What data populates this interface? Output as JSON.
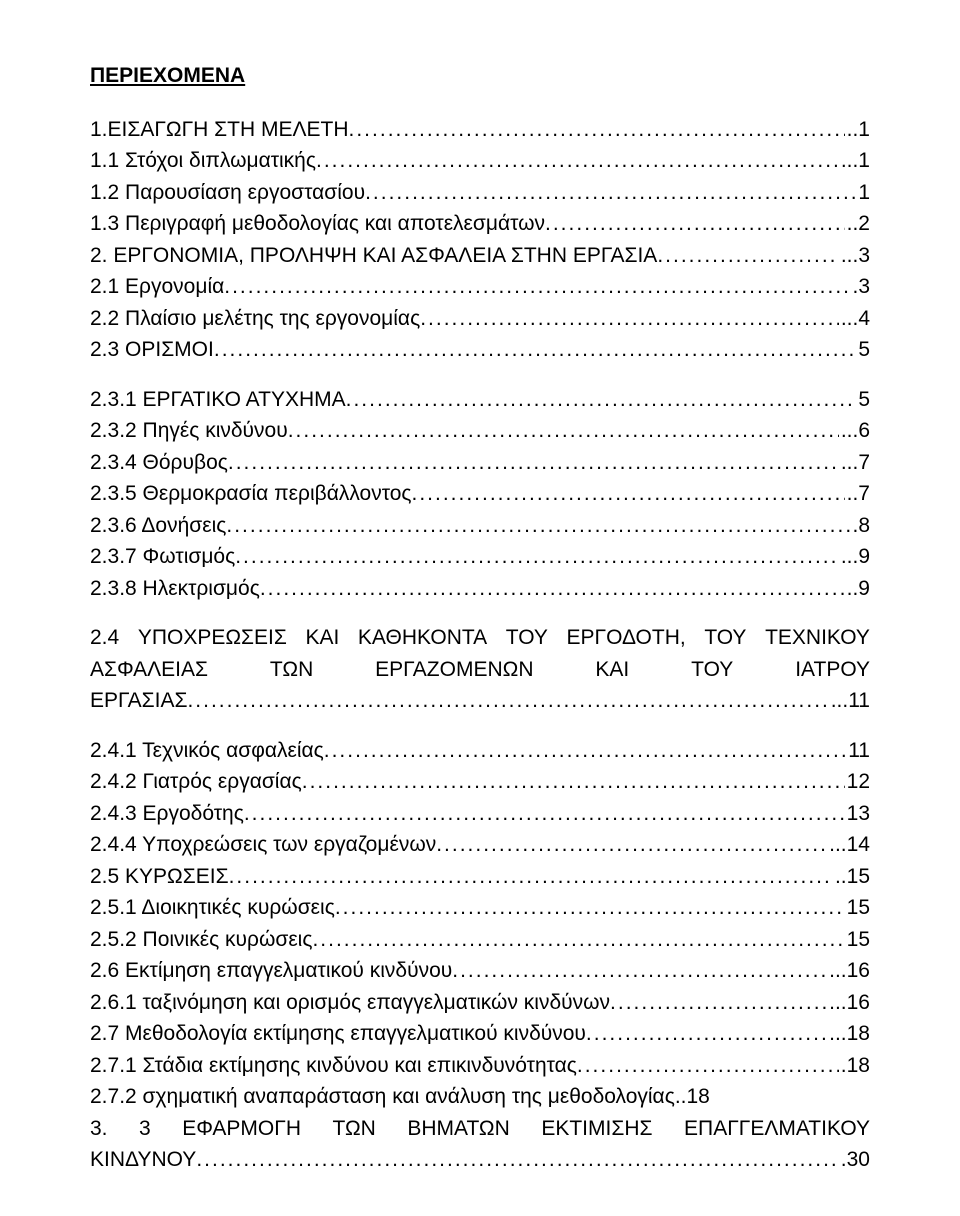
{
  "title": "ΠΕΡΙΕΧΟΜΕΝΑ",
  "font": {
    "family": "Arial",
    "size": 21,
    "title_weight": 700,
    "body_weight": 400,
    "color": "#000000"
  },
  "background_color": "#ffffff",
  "toc": [
    {
      "label": "1.ΕΙΣΑΓΩΓΗ ΣΤΗ ΜΕΛΕΤΗ",
      "page": "..1"
    },
    {
      "label": "1.1 Στόχοι διπλωματικής",
      "page": "..1"
    },
    {
      "label": "1.2 Παρουσίαση εργοστασίου",
      "page": "1"
    },
    {
      "label": "1.3 Περιγραφή μεθοδολογίας και αποτελεσμάτων",
      "page": "..2"
    },
    {
      "label": "2. ΕΡΓΟΝΟΜΙΑ, ΠΡΟΛΗΨΗ ΚΑΙ ΑΣΦΑΛΕΙΑ ΣΤΗΝ ΕΡΓΑΣΙΑ",
      "page": "...3"
    },
    {
      "label": "2.1 Εργονομία",
      "page": ".3"
    },
    {
      "label": "2.2 Πλαίσιο μελέτης της εργονομίας",
      "page": "...4"
    },
    {
      "label": "2.3 ΟΡΙΣΜΟΙ",
      "page": "5"
    },
    {
      "gap": true
    },
    {
      "label": "2.3.1 ΕΡΓΑΤΙΚΟ ΑΤΥΧΗΜΑ",
      "page": "5"
    },
    {
      "label": "2.3.2 Πηγές κινδύνου",
      "page": "...6"
    },
    {
      "label": "2.3.4 Θόρυβος",
      "page": "...7"
    },
    {
      "label": "2.3.5 Θερμοκρασία περιβάλλοντος",
      "page": "..7"
    },
    {
      "label": "2.3.6 Δονήσεις",
      "page": ".8"
    },
    {
      "label": "2.3.7 Φωτισμός",
      "page": "...9"
    },
    {
      "label": "2.3.8 Ηλεκτρισμός",
      "page": "..9"
    },
    {
      "gap": true
    },
    {
      "justify": true,
      "words": [
        "2.4",
        "ΥΠΟΧΡΕΩΣΕΙΣ",
        "ΚΑΙ",
        "ΚΑΘΗΚΟΝΤΑ",
        "ΤΟΥ",
        "ΕΡΓΟΔΟΤΗ,",
        "ΤΟΥ",
        "ΤΕΧΝΙΚΟΥ"
      ]
    },
    {
      "justify": true,
      "words": [
        "ΑΣΦΑΛΕΙΑΣ",
        "ΤΩΝ",
        "ΕΡΓΑΖΟΜΕΝΩΝ",
        "ΚΑΙ",
        "ΤΟΥ",
        "ΙΑΤΡΟΥ"
      ]
    },
    {
      "label": "ΕΡΓΑΣΙΑΣ",
      "page": "...11"
    },
    {
      "gap": true
    },
    {
      "label": "2.4.1 Τεχνικός ασφαλείας",
      "page": "11"
    },
    {
      "label": "2.4.2 Γιατρός εργασίας",
      "page": "12"
    },
    {
      "label": "2.4.3 Εργοδότης",
      "page": "13"
    },
    {
      "label": "2.4.4 Υποχρεώσεις των εργαζομένων",
      "page": "...14"
    },
    {
      "label": "2.5 ΚΥΡΩΣΕΙΣ",
      "page": "..15"
    },
    {
      "label": "2.5.1 Διοικητικές κυρώσεις",
      "page": "15"
    },
    {
      "label": "2.5.2 Ποινικές κυρώσεις",
      "page": "15"
    },
    {
      "label": "2.6 Εκτίμηση επαγγελματικού κινδύνου",
      "page": "...16"
    },
    {
      "label": "2.6.1 ταξινόμηση και ορισμός επαγγελματικών κινδύνων",
      "page": "...16"
    },
    {
      "label": "2.7 Μεθοδολογία εκτίμησης επαγγελματικού κινδύνου",
      "page": "...18"
    },
    {
      "label": "2.7.1 Στάδια εκτίμησης κινδύνου και επικινδυνότητας",
      "page": ".18"
    },
    {
      "plain": "2.7.2 σχηματική αναπαράσταση και ανάλυση της μεθοδολογίας..18"
    },
    {
      "justify": true,
      "words": [
        "3.",
        "3",
        "ΕΦΑΡΜΟΓΗ",
        "ΤΩΝ",
        "ΒΗΜΑΤΩΝ",
        "ΕΚΤΙΜΙΣΗΣ",
        "ΕΠΑΓΓΕΛΜΑΤΙΚΟΥ"
      ]
    },
    {
      "label": "ΚΙΝΔΥΝΟΥ",
      "page": ".30"
    }
  ]
}
